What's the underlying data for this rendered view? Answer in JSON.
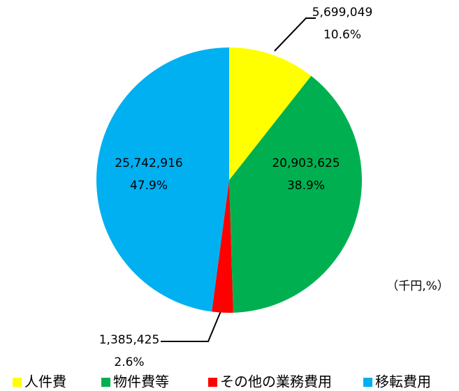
{
  "chart_data": {
    "type": "pie",
    "categories": [
      "人件費",
      "物件費等",
      "その他の業務費用",
      "移転費用"
    ],
    "values": [
      5699049,
      20903625,
      1385425,
      25742916
    ],
    "value_labels": [
      "5,699,049",
      "20,903,625",
      "1,385,425",
      "25,742,916"
    ],
    "percentages": [
      10.6,
      38.9,
      2.6,
      47.9
    ],
    "percentage_labels": [
      "10.6%",
      "38.9%",
      "2.6%",
      "47.9%"
    ],
    "colors": [
      "#ffff00",
      "#00b050",
      "#ff0000",
      "#00b0f0"
    ],
    "unit_note": "（千円,%）",
    "legend": "bottom"
  }
}
